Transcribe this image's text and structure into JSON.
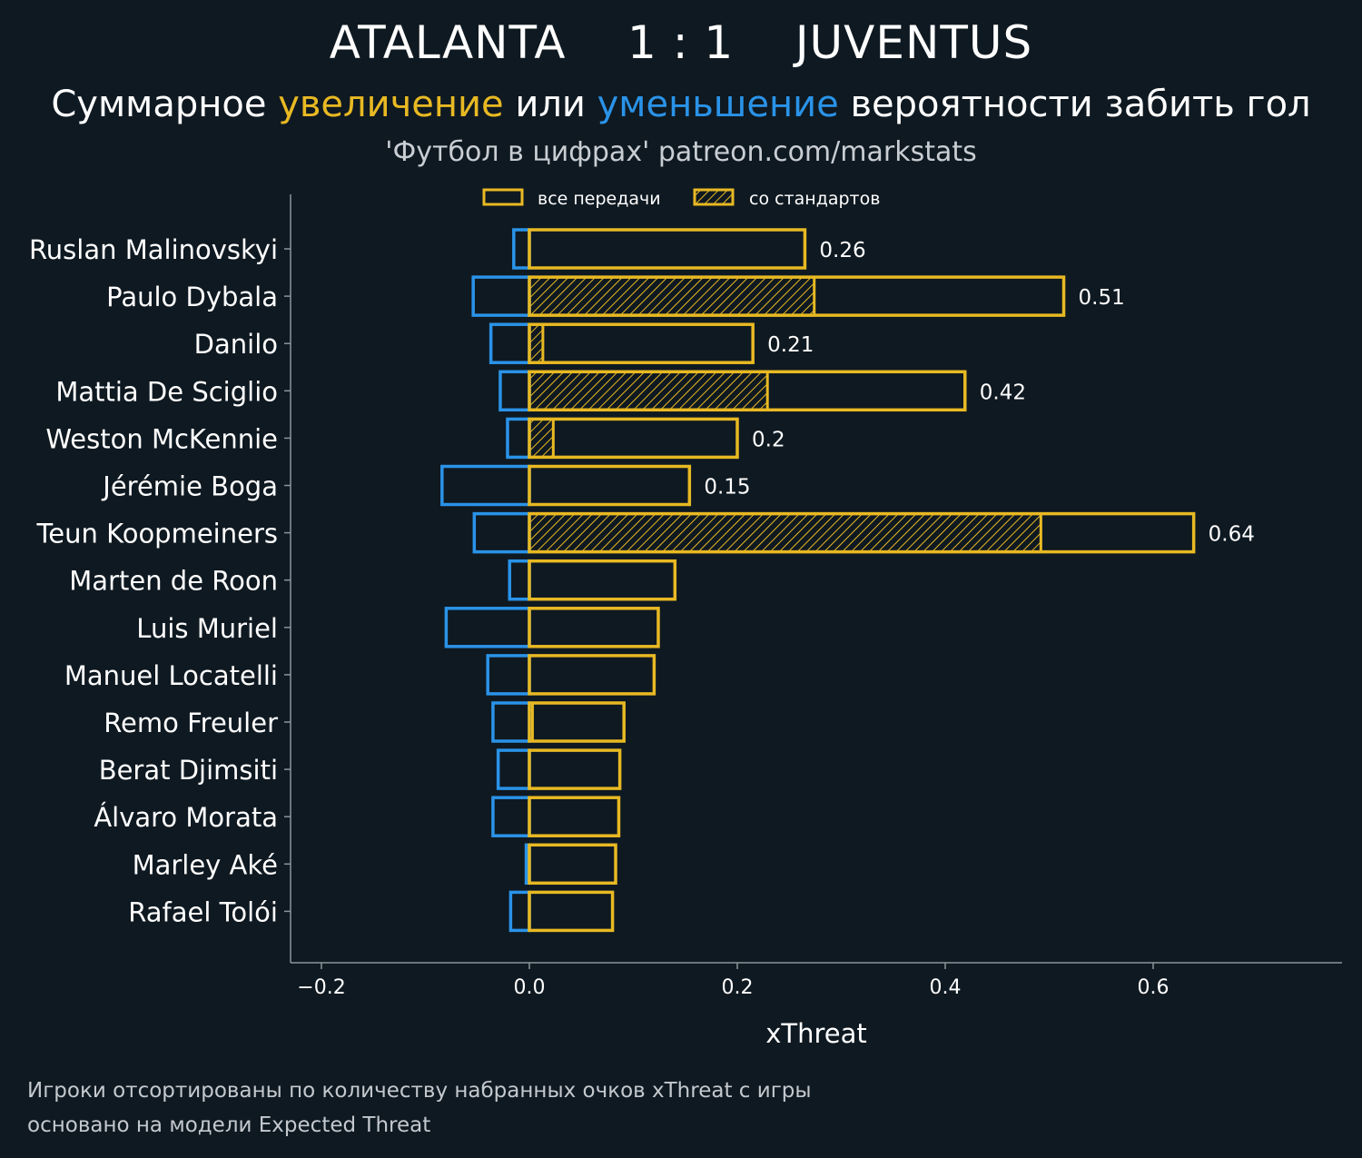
{
  "header": {
    "title": "ATALANTA    1 : 1    JUVENTUS",
    "subtitle_part1": "Суммарное ",
    "subtitle_increase": "увеличение",
    "subtitle_part2": " или ",
    "subtitle_decrease": "уменьшение",
    "subtitle_part3": " вероятности забить гол",
    "source": "'Футбол в цифрах' patreon.com/markstats"
  },
  "footnotes": {
    "line1": "Игроки отсортированы по количеству набранных очков xThreat с игры",
    "line2": "основано на модели Expected Threat"
  },
  "colors": {
    "background": "#0f1921",
    "increase": "#e8b923",
    "decrease": "#2a93e8",
    "axis": "#8a959c"
  },
  "chart_data": {
    "type": "bar",
    "orientation": "horizontal",
    "xlabel": "xThreat",
    "ylabel": "",
    "xlim": [
      -0.24,
      0.78
    ],
    "xticks": [
      -0.2,
      0.0,
      0.2,
      0.4,
      0.6
    ],
    "xtick_labels": [
      "−0.2",
      "0.0",
      "0.2",
      "0.4",
      "0.6"
    ],
    "legend": {
      "placement": "top-center",
      "entries": [
        "все передачи",
        "со стандартов"
      ]
    },
    "categories": [
      "Ruslan Malinovskyi",
      "Paulo Dybala",
      "Danilo",
      "Mattia De Sciglio",
      "Weston McKennie",
      "Jérémie Boga",
      "Teun Koopmeiners",
      "Marten de Roon",
      "Luis Muriel",
      "Manuel Locatelli",
      "Remo Freuler",
      "Berat Djimsiti",
      "Álvaro Morata",
      "Marley Aké",
      "Rafael Tolói"
    ],
    "series": [
      {
        "name": "все передачи",
        "role": "increase",
        "values": [
          0.265,
          0.514,
          0.215,
          0.419,
          0.2,
          0.154,
          0.639,
          0.14,
          0.124,
          0.12,
          0.091,
          0.087,
          0.086,
          0.083,
          0.08
        ]
      },
      {
        "name": "со стандартов",
        "role": "increase-hatched",
        "values": [
          0,
          0.274,
          0.013,
          0.229,
          0.023,
          0,
          0.492,
          0,
          0,
          0,
          0.003,
          0,
          0,
          0,
          0
        ]
      },
      {
        "role": "decrease",
        "values": [
          -0.015,
          -0.054,
          -0.037,
          -0.028,
          -0.021,
          -0.084,
          -0.053,
          -0.019,
          -0.08,
          -0.04,
          -0.035,
          -0.03,
          -0.035,
          -0.003,
          -0.018
        ]
      }
    ],
    "data_labels": [
      "0.26",
      "0.51",
      "0.21",
      "0.42",
      "0.2",
      "0.15",
      "0.64",
      "",
      "",
      "",
      "",
      "",
      "",
      "",
      ""
    ]
  }
}
